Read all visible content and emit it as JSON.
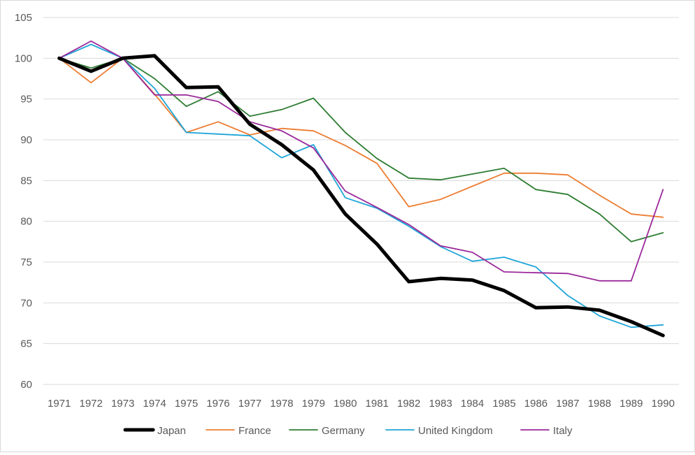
{
  "chart_data": {
    "type": "line",
    "title": "",
    "xlabel": "",
    "ylabel": "",
    "ylim": [
      60,
      105
    ],
    "yticks": [
      60,
      65,
      70,
      75,
      80,
      85,
      90,
      95,
      100,
      105
    ],
    "grid": true,
    "legend_position": "bottom",
    "categories": [
      "1971",
      "1972",
      "1973",
      "1974",
      "1975",
      "1976",
      "1977",
      "1978",
      "1979",
      "1980",
      "1981",
      "1982",
      "1983",
      "1984",
      "1985",
      "1986",
      "1987",
      "1988",
      "1989",
      "1990"
    ],
    "series": [
      {
        "name": "Japan",
        "color": "#000000",
        "values": [
          100,
          98.4,
          100,
          100.3,
          96.4,
          96.5,
          91.9,
          89.4,
          86.3,
          80.9,
          77.2,
          72.6,
          73.0,
          72.8,
          71.5,
          69.4,
          69.5,
          69.1,
          67.7,
          66.0
        ]
      },
      {
        "name": "France",
        "color": "#ed7d31",
        "values": [
          100,
          97.0,
          100,
          95.6,
          90.9,
          92.2,
          90.6,
          91.4,
          91.1,
          89.3,
          87.1,
          81.8,
          82.7,
          84.3,
          85.9,
          85.9,
          85.7,
          83.2,
          80.9,
          80.5
        ]
      },
      {
        "name": "Germany",
        "color": "#2e7d32",
        "values": [
          100,
          98.8,
          100,
          97.5,
          94.1,
          95.9,
          92.9,
          93.7,
          95.1,
          90.9,
          87.7,
          85.3,
          85.1,
          85.8,
          86.5,
          83.9,
          83.3,
          80.9,
          77.5,
          78.6
        ]
      },
      {
        "name": "United Kingdom",
        "color": "#1ea5d8",
        "values": [
          100,
          101.7,
          100,
          96.3,
          90.9,
          90.7,
          90.5,
          87.8,
          89.4,
          82.9,
          81.6,
          79.4,
          76.9,
          75.1,
          75.6,
          74.4,
          70.9,
          68.4,
          67.0,
          67.3
        ]
      },
      {
        "name": "Italy",
        "color": "#9b2a9b",
        "values": [
          100,
          102.1,
          100,
          95.5,
          95.5,
          94.7,
          92.2,
          91.1,
          89.0,
          83.7,
          81.7,
          79.6,
          77.0,
          76.2,
          73.8,
          73.7,
          73.6,
          72.7,
          72.7,
          83.9
        ]
      }
    ]
  }
}
